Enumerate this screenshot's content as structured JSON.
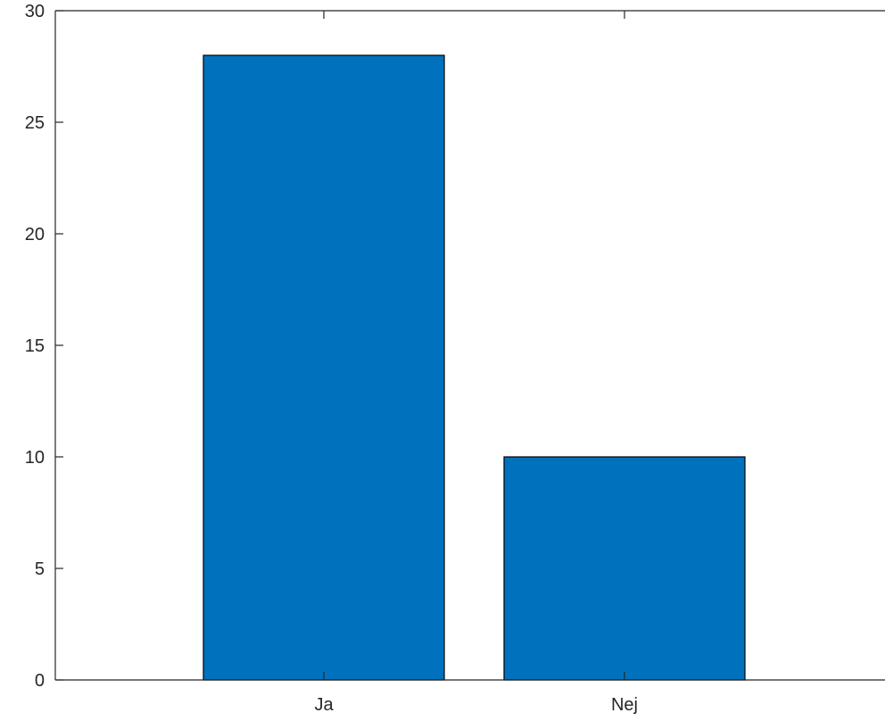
{
  "chart_data": {
    "type": "bar",
    "title": "",
    "xlabel": "",
    "ylabel": "",
    "categories": [
      "Ja",
      "Nej"
    ],
    "values": [
      28,
      10
    ],
    "ylim": [
      0,
      30
    ],
    "yticks": [
      "0",
      "5",
      "10",
      "15",
      "20",
      "25",
      "30"
    ],
    "grid": false,
    "bar_color": "#0072BD",
    "axis_color": "#262626"
  }
}
